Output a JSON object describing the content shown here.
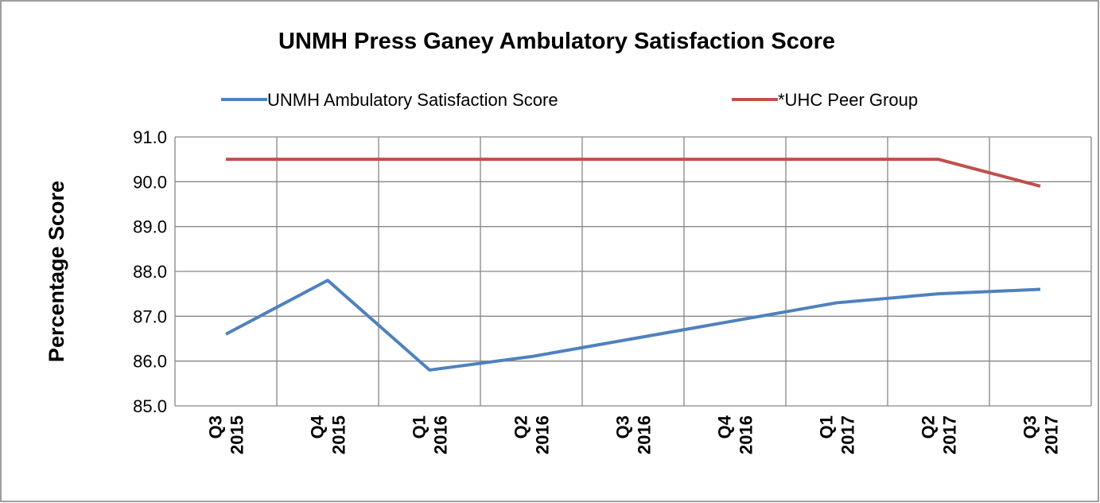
{
  "chart_data": {
    "type": "line",
    "title": "UNMH Press Ganey  Ambulatory Satisfaction Score",
    "y_label": "Percentage Score",
    "categories": [
      "Q3 2015",
      "Q4 2015",
      "Q1 2016",
      "Q2 2016",
      "Q3 2016",
      "Q4 2016",
      "Q1 2017",
      "Q2 2017",
      "Q3 2017"
    ],
    "series": [
      {
        "name": "UNMH Ambulatory Satisfaction Score",
        "color": "#4f81bd",
        "values": [
          86.6,
          87.8,
          85.8,
          86.1,
          86.5,
          86.9,
          87.3,
          87.5,
          87.6
        ]
      },
      {
        "name": "*UHC Peer Group",
        "color": "#c0504d",
        "values": [
          90.5,
          90.5,
          90.5,
          90.5,
          90.5,
          90.5,
          90.5,
          90.5,
          89.9
        ]
      }
    ],
    "ylim": [
      85,
      91
    ],
    "yticks": [
      {
        "value": 85,
        "label": "85.0"
      },
      {
        "value": 86,
        "label": "86.0"
      },
      {
        "value": 87,
        "label": "87.0"
      },
      {
        "value": 88,
        "label": "88.0"
      },
      {
        "value": 89,
        "label": "89.0"
      },
      {
        "value": 90,
        "label": "90.0"
      },
      {
        "value": 91,
        "label": "91.0"
      }
    ],
    "grid": true,
    "legend": "top"
  }
}
